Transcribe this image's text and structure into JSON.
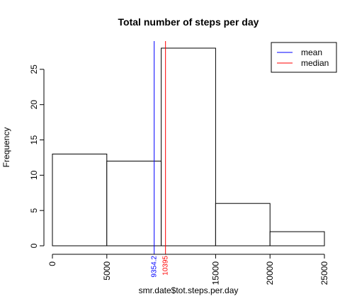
{
  "chart_data": {
    "type": "bar",
    "title": "Total number of steps per day",
    "xlabel": "smr.date$tot.steps.per.day",
    "ylabel": "Frequency",
    "bins": [
      {
        "x0": 0,
        "x1": 5000,
        "count": 13
      },
      {
        "x0": 5000,
        "x1": 10000,
        "count": 12
      },
      {
        "x0": 10000,
        "x1": 15000,
        "count": 28
      },
      {
        "x0": 15000,
        "x1": 20000,
        "count": 6
      },
      {
        "x0": 20000,
        "x1": 25000,
        "count": 2
      }
    ],
    "xlim": [
      0,
      25000
    ],
    "ylim": [
      0,
      29
    ],
    "x_ticks": [
      {
        "value": 0,
        "label": "0"
      },
      {
        "value": 5000,
        "label": "5000"
      },
      {
        "value": 15000,
        "label": "15000"
      },
      {
        "value": 20000,
        "label": "20000"
      },
      {
        "value": 25000,
        "label": "25000"
      }
    ],
    "y_ticks": [
      {
        "value": 0,
        "label": "0"
      },
      {
        "value": 5,
        "label": "5"
      },
      {
        "value": 10,
        "label": "10"
      },
      {
        "value": 15,
        "label": "15"
      },
      {
        "value": 20,
        "label": "20"
      },
      {
        "value": 25,
        "label": "25"
      }
    ],
    "reference_lines": [
      {
        "name": "mean",
        "value": 9354.2,
        "label": "9354.2",
        "color": "#0000ff"
      },
      {
        "name": "median",
        "value": 10395,
        "label": "10395",
        "color": "#ff0000"
      }
    ],
    "legend": {
      "position": "top-right",
      "entries": [
        {
          "label": "mean",
          "color": "#0000ff"
        },
        {
          "label": "median",
          "color": "#ff0000"
        }
      ]
    },
    "grid": false
  }
}
